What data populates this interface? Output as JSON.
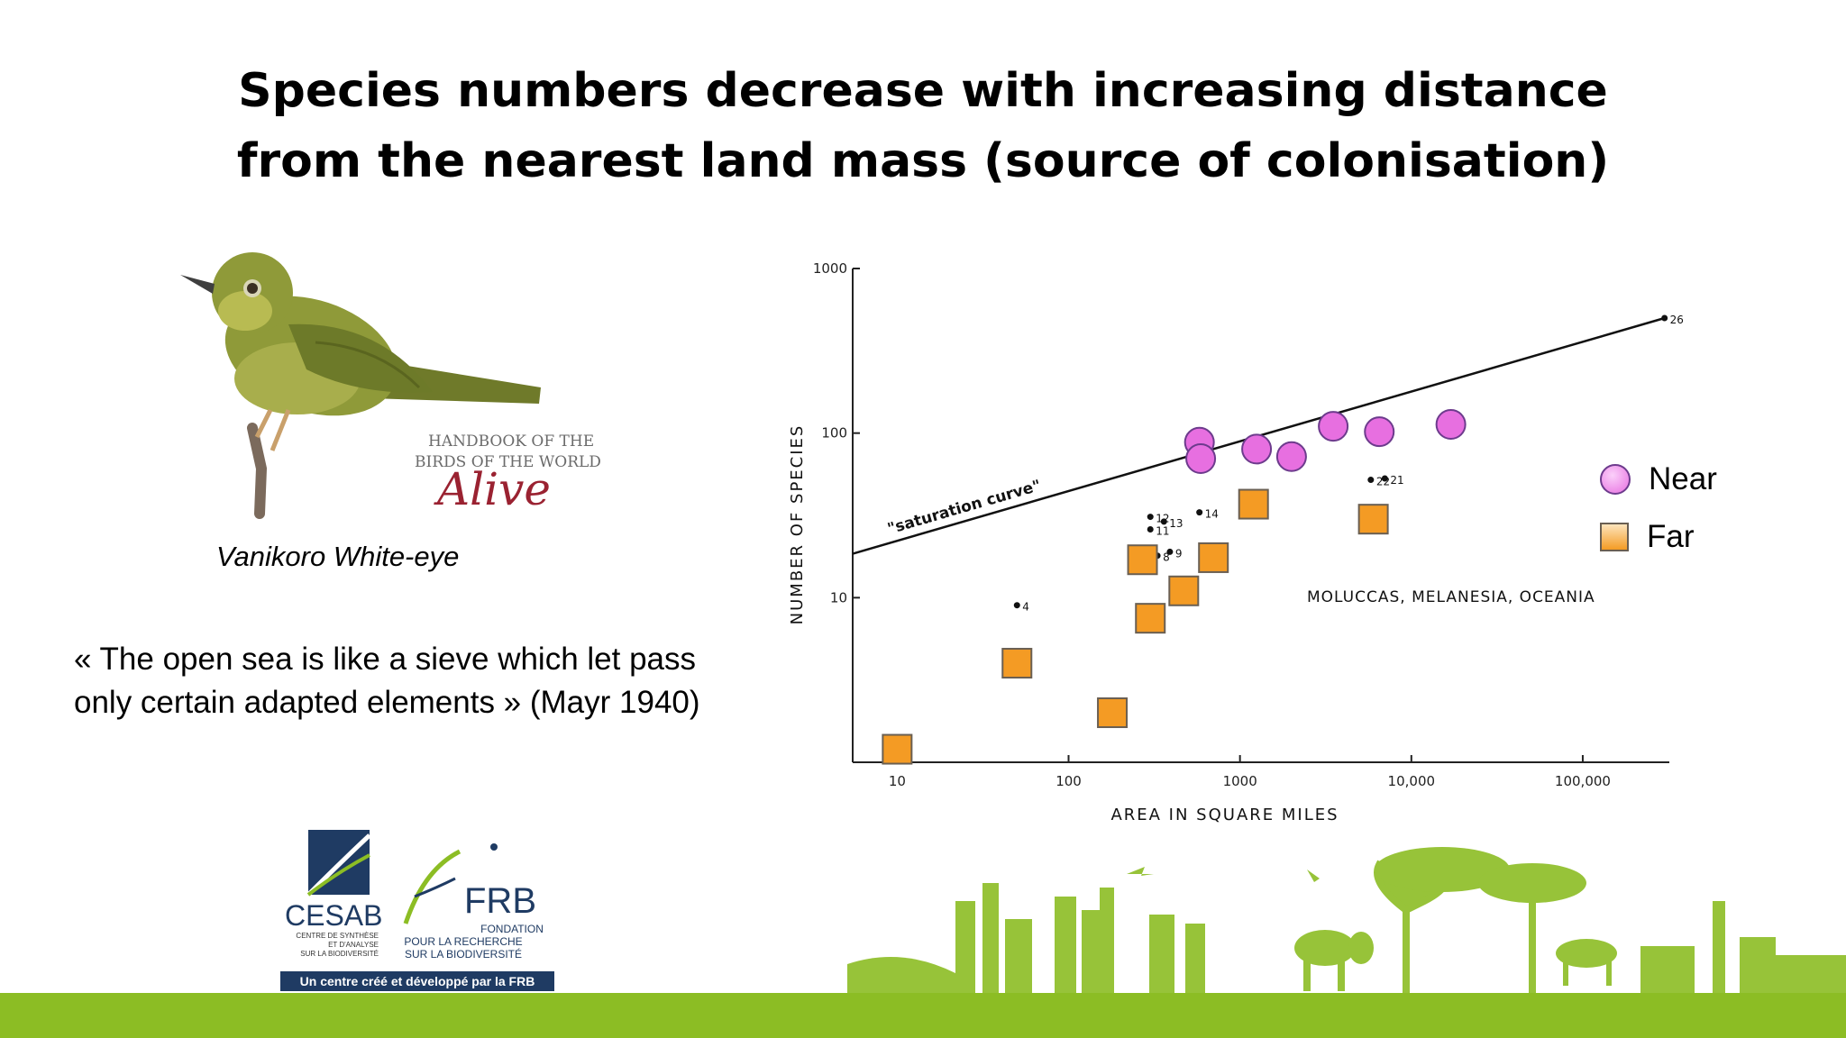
{
  "title": {
    "line1": "Species numbers decrease with increasing distance",
    "line2": "from the nearest land mass  (source of colonisation)"
  },
  "bird_caption": "Vanikoro White-eye",
  "bird_logo": {
    "line1": "HANDBOOK OF THE",
    "line2": "BIRDS OF THE WORLD",
    "word": "Alive"
  },
  "quote": "« The open sea is like a sieve which let pass only certain adapted elements » (Mayr 1940)",
  "legend": {
    "near": "Near",
    "far": "Far"
  },
  "colors": {
    "near": "#e76fe0",
    "far": "#f49b24",
    "green": "#8cbd24",
    "navy": "#1f3b63"
  },
  "logos": {
    "cesab": {
      "name": "CESAB",
      "sub": [
        "CENTRE DE SYNTHÈSE",
        "ET D'ANALYSE",
        "SUR LA BIODIVERSITÉ"
      ]
    },
    "frb": {
      "name": "FRB",
      "sub": [
        "FONDATION",
        "POUR LA RECHERCHE",
        "SUR LA BIODIVERSITÉ"
      ]
    },
    "tagline": "Un centre créé et développé par la FRB"
  },
  "chart_data": {
    "type": "scatter",
    "xlabel": "AREA  IN  SQUARE  MILES",
    "ylabel": "NUMBER  OF  SPECIES",
    "xscale": "log",
    "yscale": "log",
    "xlim": [
      5.5,
      320000
    ],
    "ylim": [
      1,
      1000
    ],
    "xticks": [
      {
        "v": 10,
        "t": "10"
      },
      {
        "v": 100,
        "t": "100"
      },
      {
        "v": 1000,
        "t": "1000"
      },
      {
        "v": 10000,
        "t": "10,000"
      },
      {
        "v": 100000,
        "t": "100,000"
      }
    ],
    "yticks": [
      {
        "v": 10,
        "t": "10"
      },
      {
        "v": 100,
        "t": "100"
      },
      {
        "v": 1000,
        "t": "1000"
      }
    ],
    "saturation_curve": {
      "label": "\"saturation curve\"",
      "from": [
        5.5,
        18.5
      ],
      "to": [
        300000,
        500
      ]
    },
    "region_label": "MOLUCCAS, MELANESIA, OCEANIA",
    "series": [
      {
        "name": "Near",
        "points": [
          [
            580,
            88
          ],
          [
            590,
            70
          ],
          [
            1250,
            80
          ],
          [
            2000,
            72
          ],
          [
            3500,
            110
          ],
          [
            6500,
            102
          ],
          [
            17000,
            113
          ]
        ]
      },
      {
        "name": "Far",
        "points": [
          [
            10,
            1.2
          ],
          [
            50,
            4
          ],
          [
            180,
            2
          ],
          [
            270,
            17
          ],
          [
            300,
            7.5
          ],
          [
            470,
            11
          ],
          [
            700,
            17.5
          ],
          [
            1200,
            37
          ],
          [
            6000,
            30
          ]
        ]
      }
    ],
    "original_points": [
      {
        "label": "4",
        "x": 50,
        "y": 9
      },
      {
        "label": "8",
        "x": 330,
        "y": 18
      },
      {
        "label": "9",
        "x": 390,
        "y": 19
      },
      {
        "label": "11",
        "x": 300,
        "y": 26
      },
      {
        "label": "12",
        "x": 300,
        "y": 31
      },
      {
        "label": "13",
        "x": 360,
        "y": 29
      },
      {
        "label": "14",
        "x": 580,
        "y": 33
      },
      {
        "label": "22",
        "x": 5800,
        "y": 52
      },
      {
        "label": "21",
        "x": 7000,
        "y": 53
      },
      {
        "label": "26",
        "x": 300000,
        "y": 500
      }
    ]
  }
}
